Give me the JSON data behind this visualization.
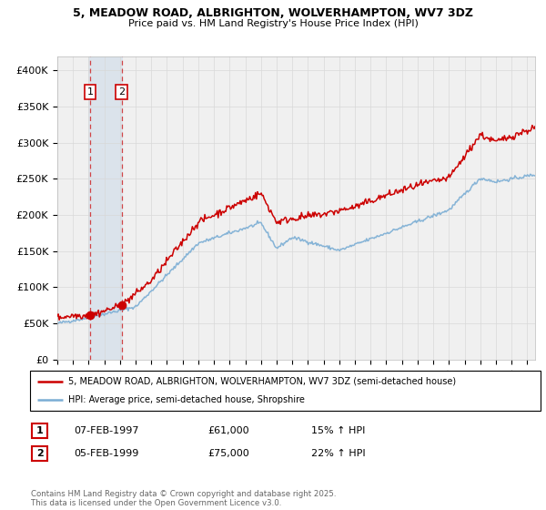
{
  "title1": "5, MEADOW ROAD, ALBRIGHTON, WOLVERHAMPTON, WV7 3DZ",
  "title2": "Price paid vs. HM Land Registry's House Price Index (HPI)",
  "legend_line1": "5, MEADOW ROAD, ALBRIGHTON, WOLVERHAMPTON, WV7 3DZ (semi-detached house)",
  "legend_line2": "HPI: Average price, semi-detached house, Shropshire",
  "transaction1": {
    "num": "1",
    "date": "07-FEB-1997",
    "price": "£61,000",
    "hpi": "15% ↑ HPI"
  },
  "transaction2": {
    "num": "2",
    "date": "05-FEB-1999",
    "price": "£75,000",
    "hpi": "22% ↑ HPI"
  },
  "copyright": "Contains HM Land Registry data © Crown copyright and database right 2025.\nThis data is licensed under the Open Government Licence v3.0.",
  "sale_color": "#cc0000",
  "hpi_color": "#7aadd4",
  "shade_color": "#c8d8e8",
  "plot_bg": "#f0f0f0",
  "grid_color": "#d8d8d8",
  "ylim": [
    0,
    420000
  ],
  "yticks": [
    0,
    50000,
    100000,
    150000,
    200000,
    250000,
    300000,
    350000,
    400000
  ],
  "ytick_labels": [
    "£0",
    "£50K",
    "£100K",
    "£150K",
    "£200K",
    "£250K",
    "£300K",
    "£350K",
    "£400K"
  ],
  "sale1_x": 1997.1,
  "sale1_y": 61000,
  "sale2_x": 1999.1,
  "sale2_y": 75000,
  "xmin": 1995.0,
  "xmax": 2025.5
}
